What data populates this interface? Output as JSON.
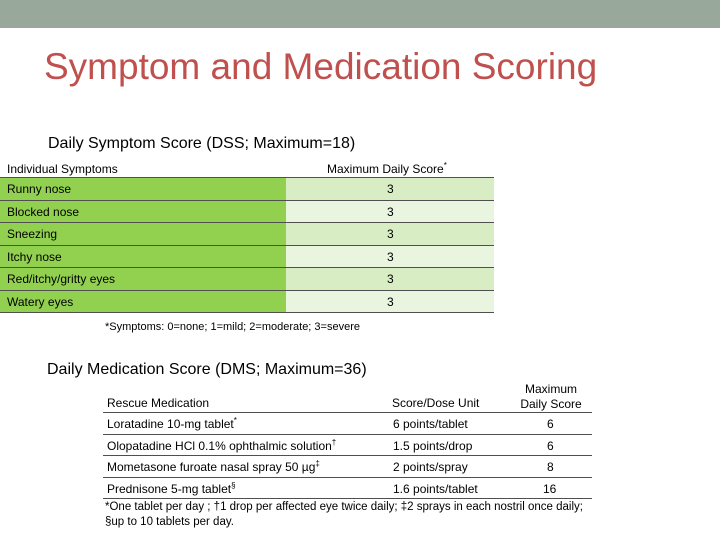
{
  "title": "Symptom and Medication Scoring",
  "dss": {
    "heading": "Daily Symptom Score (DSS; Maximum=18)",
    "col1": "Individual Symptoms",
    "col2": "Maximum Daily Score",
    "col2_mark": "*",
    "rows": [
      {
        "symptom": "Runny nose",
        "score": "3"
      },
      {
        "symptom": "Blocked nose",
        "score": "3"
      },
      {
        "symptom": "Sneezing",
        "score": "3"
      },
      {
        "symptom": "Itchy nose",
        "score": "3"
      },
      {
        "symptom": "Red/itchy/gritty eyes",
        "score": "3"
      },
      {
        "symptom": "Watery eyes",
        "score": "3"
      }
    ],
    "footnote": "*Symptoms: 0=none; 1=mild; 2=moderate; 3=severe"
  },
  "dms": {
    "heading": "Daily Medication Score (DMS; Maximum=36)",
    "col1": "Rescue Medication",
    "col2": "Score/Dose Unit",
    "col3_line1": "Maximum",
    "col3_line2": "Daily Score",
    "rows": [
      {
        "medication": "Loratadine 10-mg tablet",
        "mark": "*",
        "unit": "6 points/tablet",
        "max": "6"
      },
      {
        "medication": "Olopatadine HCl 0.1% ophthalmic solution",
        "mark": "†",
        "unit": "1.5 points/drop",
        "max": "6"
      },
      {
        "medication": "Mometasone furoate nasal spray 50 µg",
        "mark": "‡",
        "unit": "2 points/spray",
        "max": "8"
      },
      {
        "medication": "Prednisone 5-mg tablet",
        "mark": "§",
        "unit": "1.6 points/tablet",
        "max": "16"
      }
    ],
    "footnote": "*One tablet per day ; †1 drop per affected eye twice daily; ‡2 sprays in each nostril once daily; §up to 10 tablets per day."
  }
}
